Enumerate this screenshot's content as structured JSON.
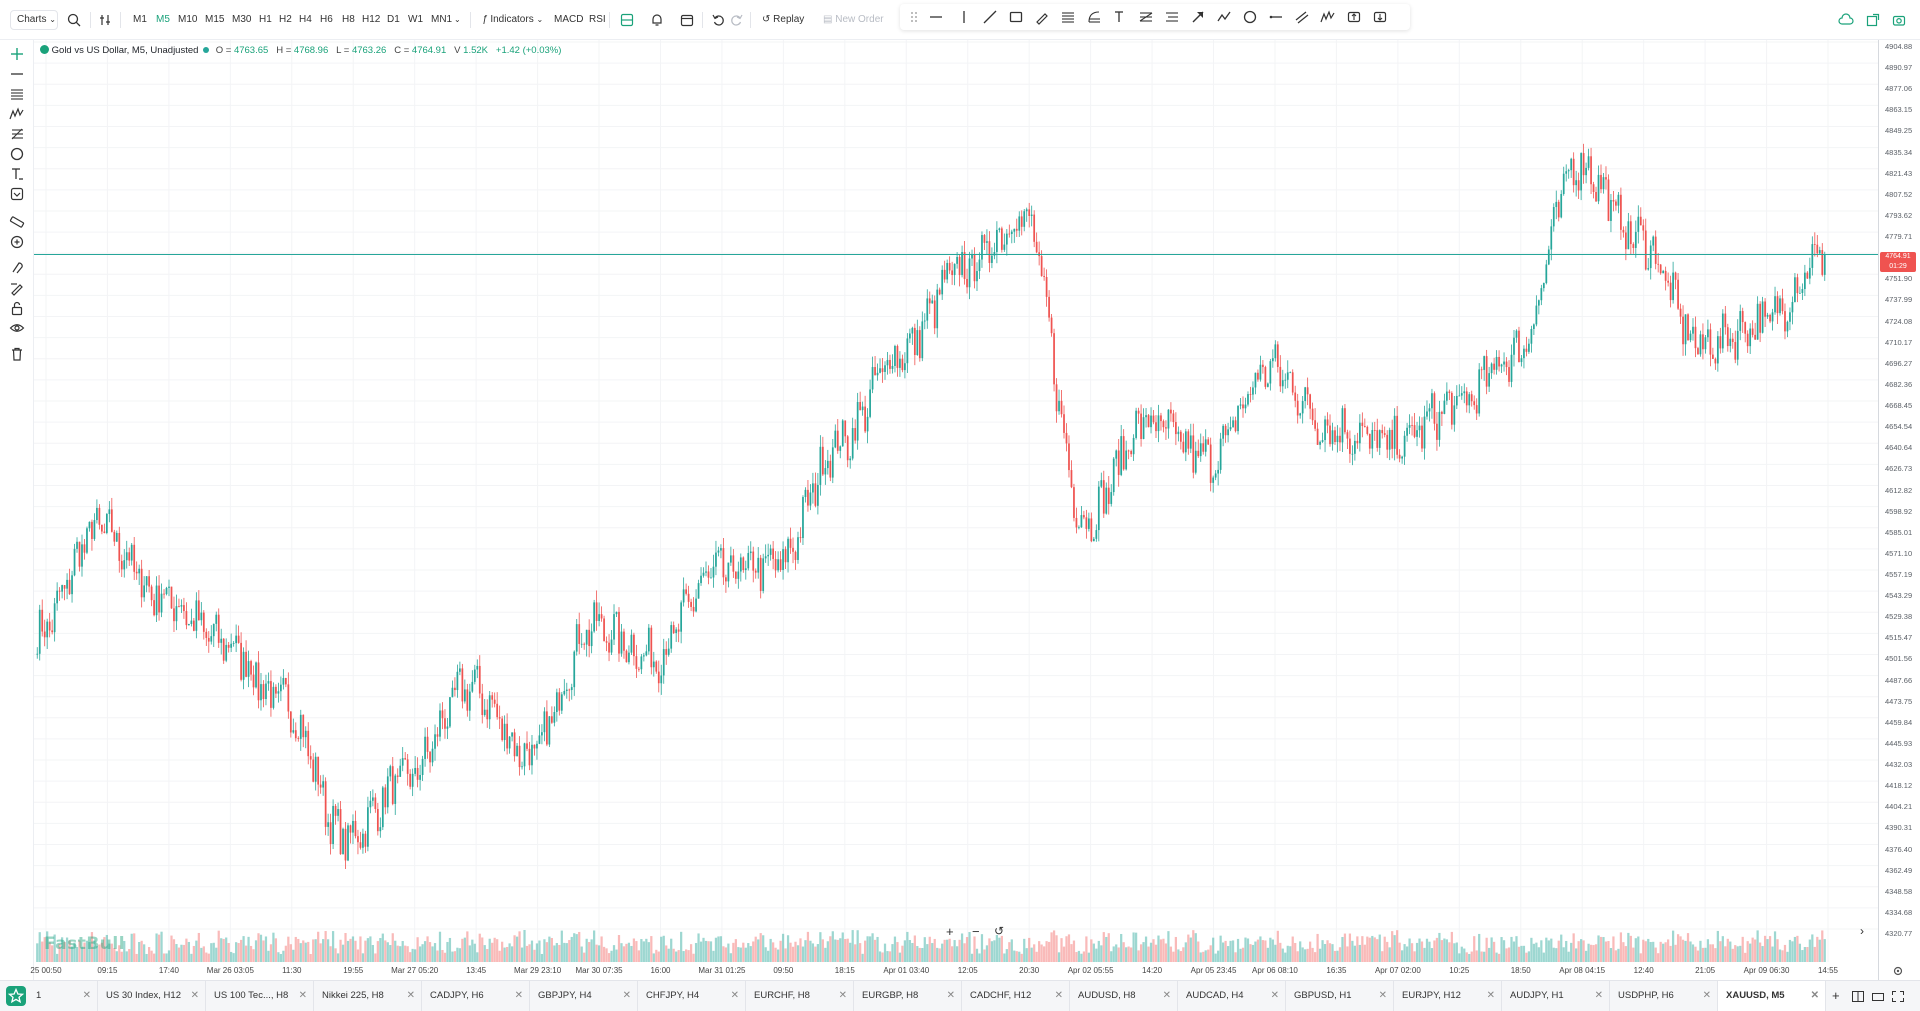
{
  "topbar": {
    "charts_label": "Charts",
    "timeframes": [
      "M1",
      "M5",
      "M10",
      "M15",
      "M30",
      "H1",
      "H2",
      "H4",
      "H6",
      "H8",
      "H12",
      "D1",
      "W1",
      "MN1"
    ],
    "active_timeframe": "M5",
    "indicators_label": "Indicators",
    "macd_label": "MACD",
    "rsi_label": "RSI",
    "replay_label": "Replay",
    "new_order_label": "New Order"
  },
  "legend": {
    "symbol": "Gold vs US Dollar, M5, Unadjusted",
    "open_label": "O",
    "open": "4763.65",
    "high_label": "H",
    "high": "4768.96",
    "low_label": "L",
    "low": "4763.26",
    "close_label": "C",
    "close": "4764.91",
    "volume_label": "V",
    "volume": "1.52K",
    "change": "+1.42 (+0.03%)"
  },
  "price_axis": [
    "4904.88",
    "4890.97",
    "4877.06",
    "4863.15",
    "4849.25",
    "4835.34",
    "4821.43",
    "4807.52",
    "4793.62",
    "4779.71",
    "4765.80",
    "4751.90",
    "4737.99",
    "4724.08",
    "4710.17",
    "4696.27",
    "4682.36",
    "4668.45",
    "4654.54",
    "4640.64",
    "4626.73",
    "4612.82",
    "4598.92",
    "4585.01",
    "4571.10",
    "4557.19",
    "4543.29",
    "4529.38",
    "4515.47",
    "4501.56",
    "4487.66",
    "4473.75",
    "4459.84",
    "4445.93",
    "4432.03",
    "4418.12",
    "4404.21",
    "4390.31",
    "4376.40",
    "4362.49",
    "4348.58",
    "4334.68",
    "4320.77"
  ],
  "current_price": {
    "value": "4764.91",
    "countdown": "01:29"
  },
  "time_axis": [
    "25 00:50",
    "09:15",
    "17:40",
    "Mar 26 03:05",
    "11:30",
    "19:55",
    "Mar 27 05:20",
    "13:45",
    "Mar 29 23:10",
    "Mar 30 07:35",
    "16:00",
    "Mar 31 01:25",
    "09:50",
    "18:15",
    "Apr 01 03:40",
    "12:05",
    "20:30",
    "Apr 02 05:55",
    "14:20",
    "Apr 05 23:45",
    "Apr 06 08:10",
    "16:35",
    "Apr 07 02:00",
    "10:25",
    "18:50",
    "Apr 08 04:15",
    "12:40",
    "21:05",
    "Apr 09 06:30",
    "14:55"
  ],
  "watermark": "FastBull",
  "chart_data": {
    "type": "candlestick",
    "title": "Gold vs US Dollar, M5, Unadjusted",
    "ylim": [
      4320.77,
      4904.88
    ],
    "x": [
      "25 00:50",
      "09:15",
      "17:40",
      "Mar 26 03:05",
      "11:30",
      "19:55",
      "Mar 27 05:20",
      "13:45",
      "Mar 29 23:10",
      "Mar 30 07:35",
      "16:00",
      "Mar 31 01:25",
      "09:50",
      "18:15",
      "Apr 01 03:40",
      "12:05",
      "20:30",
      "Apr 02 05:55",
      "14:20",
      "Apr 05 23:45",
      "Apr 06 08:10",
      "16:35",
      "Apr 07 02:00",
      "10:25",
      "18:50",
      "Apr 08 04:15",
      "12:40",
      "21:05",
      "Apr 09 06:30",
      "14:55"
    ],
    "close": [
      4515,
      4585,
      4540,
      4510,
      4470,
      4380,
      4420,
      4480,
      4435,
      4520,
      4500,
      4555,
      4560,
      4640,
      4700,
      4755,
      4790,
      4590,
      4655,
      4630,
      4690,
      4650,
      4640,
      4665,
      4700,
      4825,
      4775,
      4705,
      4720,
      4765
    ],
    "colors": {
      "up": "#26a69a",
      "down": "#ef5350",
      "price_line": "#26a69a"
    }
  },
  "tabs": [
    {
      "label": "1"
    },
    {
      "label": "US 30 Index, H12"
    },
    {
      "label": "US 100 Tec..., H8"
    },
    {
      "label": "Nikkei 225, H8"
    },
    {
      "label": "CADJPY, H6"
    },
    {
      "label": "GBPJPY, H4"
    },
    {
      "label": "CHFJPY, H4"
    },
    {
      "label": "EURCHF, H8"
    },
    {
      "label": "EURGBP, H8"
    },
    {
      "label": "CADCHF, H12"
    },
    {
      "label": "AUDUSD, H8"
    },
    {
      "label": "AUDCAD, H4"
    },
    {
      "label": "GBPUSD, H1"
    },
    {
      "label": "EURJPY, H12"
    },
    {
      "label": "AUDJPY, H1"
    },
    {
      "label": "USDPHP, H6"
    },
    {
      "label": "XAUUSD, M5"
    }
  ],
  "active_tab": "XAUUSD, M5"
}
